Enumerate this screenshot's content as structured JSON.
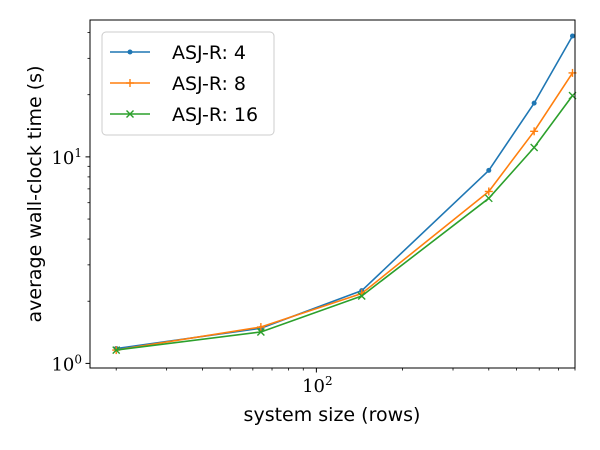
{
  "chart_data": {
    "type": "line",
    "xlabel": "system size (rows)",
    "ylabel": "average wall-clock time (s)",
    "xscale": "log",
    "yscale": "log",
    "xlim": [
      16.2,
      800
    ],
    "ylim": [
      0.95,
      46
    ],
    "xticks": [
      {
        "value": 100,
        "base": "10",
        "exp": "2"
      }
    ],
    "yticks": [
      {
        "value": 1,
        "base": "10",
        "exp": "0"
      },
      {
        "value": 10,
        "base": "10",
        "exp": "1"
      }
    ],
    "grid": false,
    "legend_position": "top-left",
    "series": [
      {
        "name": "ASJ-R: 4",
        "color": "#1f77b4",
        "marker": "point",
        "x": [
          20,
          64,
          144,
          400,
          576,
          784
        ],
        "y": [
          1.18,
          1.48,
          2.25,
          8.6,
          18.2,
          38.5
        ]
      },
      {
        "name": "ASJ-R: 8",
        "color": "#ff7f0e",
        "marker": "plus",
        "x": [
          20,
          64,
          144,
          400,
          576,
          784
        ],
        "y": [
          1.16,
          1.5,
          2.18,
          6.8,
          13.3,
          25.5
        ]
      },
      {
        "name": "ASJ-R: 16",
        "color": "#2ca02c",
        "marker": "x",
        "x": [
          20,
          64,
          144,
          400,
          576,
          784
        ],
        "y": [
          1.16,
          1.42,
          2.12,
          6.3,
          11.1,
          19.8
        ]
      }
    ]
  }
}
